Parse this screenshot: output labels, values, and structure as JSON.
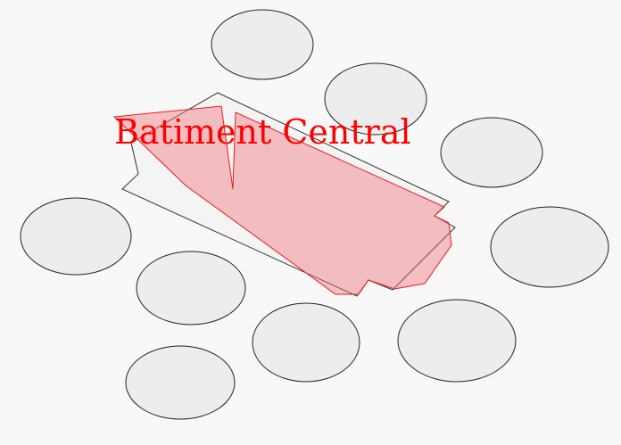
{
  "label": {
    "text": "Batiment Central",
    "color": "#ff0000"
  },
  "colors": {
    "background": "#f8f8f8",
    "ellipse_fill": "#ededed",
    "ellipse_stroke": "#222222",
    "building_fill": "#f4f4f4",
    "building_stroke": "#333333",
    "highlight_fill": "#f5a9ad",
    "highlight_stroke": "#e61e1e"
  }
}
